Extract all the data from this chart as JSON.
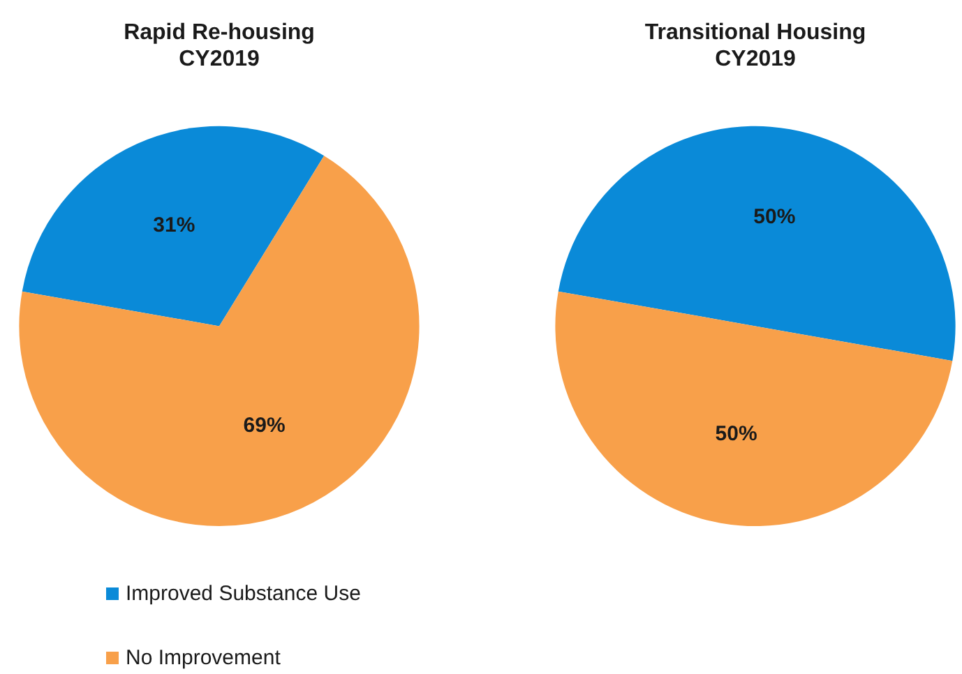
{
  "chart_data": [
    {
      "type": "pie",
      "title": "Rapid Re-housing\nCY2019",
      "categories": [
        "Improved Substance Use",
        "No Improvement"
      ],
      "values": [
        31,
        69
      ],
      "colors": [
        "#0a8ad8",
        "#f8a04a"
      ],
      "value_labels": [
        "31%",
        "69%"
      ],
      "legend": "bottom left"
    },
    {
      "type": "pie",
      "title": "Transitional Housing\nCY2019",
      "categories": [
        null,
        null
      ],
      "values": [
        50,
        50
      ],
      "colors": [
        "#0a8ad8",
        "#f8a04a"
      ],
      "value_labels": [
        "50%",
        "50%"
      ]
    }
  ]
}
